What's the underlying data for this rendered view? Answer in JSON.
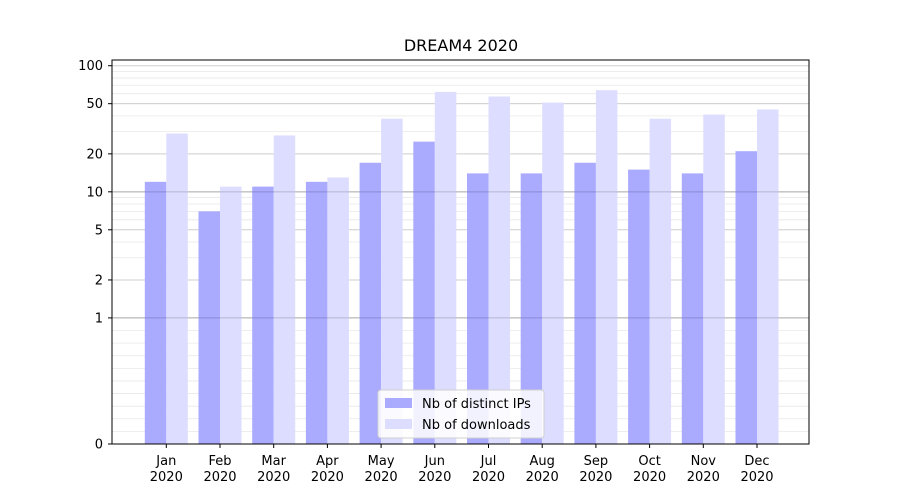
{
  "chart_data": {
    "type": "bar",
    "title": "DREAM4 2020",
    "xlabel": "",
    "ylabel": "",
    "yscale": "symlog",
    "ylim": [
      0,
      100
    ],
    "yticks": [
      0,
      1,
      2,
      5,
      10,
      20,
      50,
      100
    ],
    "ytick_labels": [
      "0",
      "1",
      "2",
      "5",
      "10",
      "20",
      "50",
      "100"
    ],
    "categories": [
      "Jan\n2020",
      "Feb\n2020",
      "Mar\n2020",
      "Apr\n2020",
      "May\n2020",
      "Jun\n2020",
      "Jul\n2020",
      "Aug\n2020",
      "Sep\n2020",
      "Oct\n2020",
      "Nov\n2020",
      "Dec\n2020"
    ],
    "category_lines": [
      [
        "Jan",
        "2020"
      ],
      [
        "Feb",
        "2020"
      ],
      [
        "Mar",
        "2020"
      ],
      [
        "Apr",
        "2020"
      ],
      [
        "May",
        "2020"
      ],
      [
        "Jun",
        "2020"
      ],
      [
        "Jul",
        "2020"
      ],
      [
        "Aug",
        "2020"
      ],
      [
        "Sep",
        "2020"
      ],
      [
        "Oct",
        "2020"
      ],
      [
        "Nov",
        "2020"
      ],
      [
        "Dec",
        "2020"
      ]
    ],
    "series": [
      {
        "name": "Nb of distinct IPs",
        "color": "#aaaaff",
        "values": [
          12,
          7,
          11,
          12,
          17,
          25,
          14,
          14,
          17,
          15,
          14,
          21
        ]
      },
      {
        "name": "Nb of downloads",
        "color": "#ddddff",
        "values": [
          29,
          11,
          28,
          13,
          38,
          62,
          57,
          51,
          64,
          38,
          41,
          45
        ]
      }
    ],
    "grid": true,
    "legend_position": "bottom-center"
  }
}
